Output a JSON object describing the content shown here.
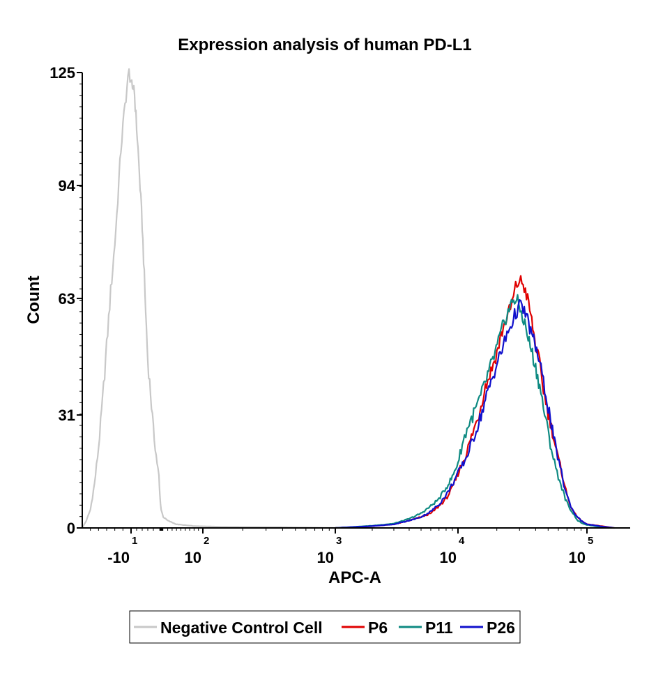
{
  "chart_data": {
    "type": "line",
    "title": "Expression analysis of human PD-L1",
    "xlabel": "APC-A",
    "ylabel": "Count",
    "x_scale": "biexponential (log-like)",
    "xlim": [
      -20,
      170000
    ],
    "ylim": [
      0,
      125
    ],
    "yticks": [
      0,
      31,
      63,
      94,
      125
    ],
    "xticks": [
      {
        "base": "-10",
        "exp": "1",
        "value": -10
      },
      {
        "base": "10",
        "exp": "2",
        "value": 100
      },
      {
        "base": "10",
        "exp": "3",
        "value": 1000
      },
      {
        "base": "10",
        "exp": "4",
        "value": 10000
      },
      {
        "base": "10",
        "exp": "5",
        "value": 100000
      }
    ],
    "grid": false,
    "legend_position": "bottom",
    "series": [
      {
        "name": "Negative Control Cell",
        "color": "#c8c8c8",
        "points": [
          [
            -22,
            0
          ],
          [
            -21,
            2
          ],
          [
            -20,
            5
          ],
          [
            -19,
            12
          ],
          [
            -18,
            22
          ],
          [
            -17,
            35
          ],
          [
            -16,
            50
          ],
          [
            -15,
            65
          ],
          [
            -14,
            78
          ],
          [
            -13.5,
            86
          ],
          [
            -13,
            95
          ],
          [
            -12.5,
            104
          ],
          [
            -12,
            110
          ],
          [
            -11.5,
            116
          ],
          [
            -11,
            121
          ],
          [
            -10.5,
            125
          ],
          [
            -10,
            123
          ],
          [
            -9.5,
            119
          ],
          [
            -9,
            122
          ],
          [
            -8.5,
            116
          ],
          [
            -8,
            110
          ],
          [
            -7.5,
            104
          ],
          [
            -7,
            97
          ],
          [
            -6.5,
            90
          ],
          [
            -6,
            83
          ],
          [
            -5.5,
            74
          ],
          [
            -5,
            64
          ],
          [
            -4.5,
            55
          ],
          [
            -4,
            46
          ],
          [
            -3,
            37
          ],
          [
            -2,
            27
          ],
          [
            -1,
            20
          ],
          [
            0,
            14
          ],
          [
            2,
            9
          ],
          [
            5,
            5
          ],
          [
            10,
            3
          ],
          [
            20,
            2
          ],
          [
            40,
            1
          ],
          [
            80,
            0.5
          ],
          [
            150,
            0.3
          ],
          [
            400,
            0.2
          ],
          [
            1000,
            0
          ]
        ]
      },
      {
        "name": "P6",
        "color": "#e00000",
        "points": [
          [
            1000,
            0
          ],
          [
            2000,
            0.5
          ],
          [
            3000,
            1
          ],
          [
            4000,
            2
          ],
          [
            5000,
            3
          ],
          [
            6000,
            4
          ],
          [
            7000,
            6
          ],
          [
            8000,
            8
          ],
          [
            9000,
            11
          ],
          [
            10000,
            15
          ],
          [
            11500,
            20
          ],
          [
            13000,
            26
          ],
          [
            14500,
            31
          ],
          [
            16000,
            38
          ],
          [
            18000,
            43
          ],
          [
            20000,
            48
          ],
          [
            22000,
            54
          ],
          [
            24000,
            58
          ],
          [
            26000,
            61
          ],
          [
            28000,
            66
          ],
          [
            30000,
            68
          ],
          [
            32000,
            67
          ],
          [
            34000,
            64
          ],
          [
            36000,
            60
          ],
          [
            38000,
            55
          ],
          [
            40000,
            50
          ],
          [
            43000,
            45
          ],
          [
            46000,
            38
          ],
          [
            49000,
            33
          ],
          [
            52000,
            29
          ],
          [
            55000,
            25
          ],
          [
            58000,
            21
          ],
          [
            62000,
            17
          ],
          [
            66000,
            13
          ],
          [
            70000,
            9
          ],
          [
            75000,
            6
          ],
          [
            80000,
            4
          ],
          [
            90000,
            2
          ],
          [
            100000,
            1
          ],
          [
            120000,
            0.5
          ],
          [
            140000,
            0
          ]
        ]
      },
      {
        "name": "P11",
        "color": "#0e8a82",
        "points": [
          [
            1000,
            0
          ],
          [
            2000,
            0.6
          ],
          [
            3000,
            1.2
          ],
          [
            4000,
            2.5
          ],
          [
            5000,
            4
          ],
          [
            6000,
            6
          ],
          [
            7000,
            8
          ],
          [
            8000,
            11
          ],
          [
            9000,
            14
          ],
          [
            10000,
            18
          ],
          [
            11000,
            24
          ],
          [
            12000,
            28
          ],
          [
            13500,
            32
          ],
          [
            15000,
            36
          ],
          [
            17000,
            42
          ],
          [
            19000,
            47
          ],
          [
            21000,
            52
          ],
          [
            23000,
            57
          ],
          [
            25000,
            60
          ],
          [
            27000,
            63
          ],
          [
            29000,
            62
          ],
          [
            31000,
            59
          ],
          [
            33000,
            56
          ],
          [
            35000,
            52
          ],
          [
            37000,
            49
          ],
          [
            40000,
            44
          ],
          [
            43000,
            39
          ],
          [
            46000,
            33
          ],
          [
            49000,
            28
          ],
          [
            52000,
            23
          ],
          [
            56000,
            18
          ],
          [
            60000,
            14
          ],
          [
            64000,
            11
          ],
          [
            68000,
            8
          ],
          [
            72000,
            6
          ],
          [
            78000,
            4
          ],
          [
            85000,
            2
          ],
          [
            95000,
            1
          ],
          [
            110000,
            0.5
          ],
          [
            130000,
            0
          ]
        ]
      },
      {
        "name": "P26",
        "color": "#1010cc",
        "points": [
          [
            1000,
            0
          ],
          [
            2000,
            0.5
          ],
          [
            3000,
            1
          ],
          [
            4000,
            2
          ],
          [
            5000,
            3
          ],
          [
            6000,
            4.5
          ],
          [
            7000,
            6.5
          ],
          [
            8000,
            9
          ],
          [
            9000,
            12
          ],
          [
            10000,
            15
          ],
          [
            11500,
            19
          ],
          [
            13000,
            24
          ],
          [
            14500,
            29
          ],
          [
            16000,
            34
          ],
          [
            18000,
            40
          ],
          [
            20000,
            45
          ],
          [
            22000,
            49
          ],
          [
            24000,
            53
          ],
          [
            26000,
            56
          ],
          [
            28000,
            59
          ],
          [
            30000,
            61
          ],
          [
            32000,
            60
          ],
          [
            34000,
            58
          ],
          [
            36000,
            55
          ],
          [
            38000,
            52
          ],
          [
            40000,
            50
          ],
          [
            43000,
            45
          ],
          [
            46000,
            40
          ],
          [
            49000,
            35
          ],
          [
            52000,
            30
          ],
          [
            55000,
            25
          ],
          [
            58000,
            21
          ],
          [
            62000,
            17
          ],
          [
            66000,
            12
          ],
          [
            70000,
            9
          ],
          [
            75000,
            6
          ],
          [
            80000,
            4
          ],
          [
            90000,
            2
          ],
          [
            100000,
            1
          ],
          [
            120000,
            0.4
          ],
          [
            140000,
            0
          ]
        ]
      }
    ]
  }
}
